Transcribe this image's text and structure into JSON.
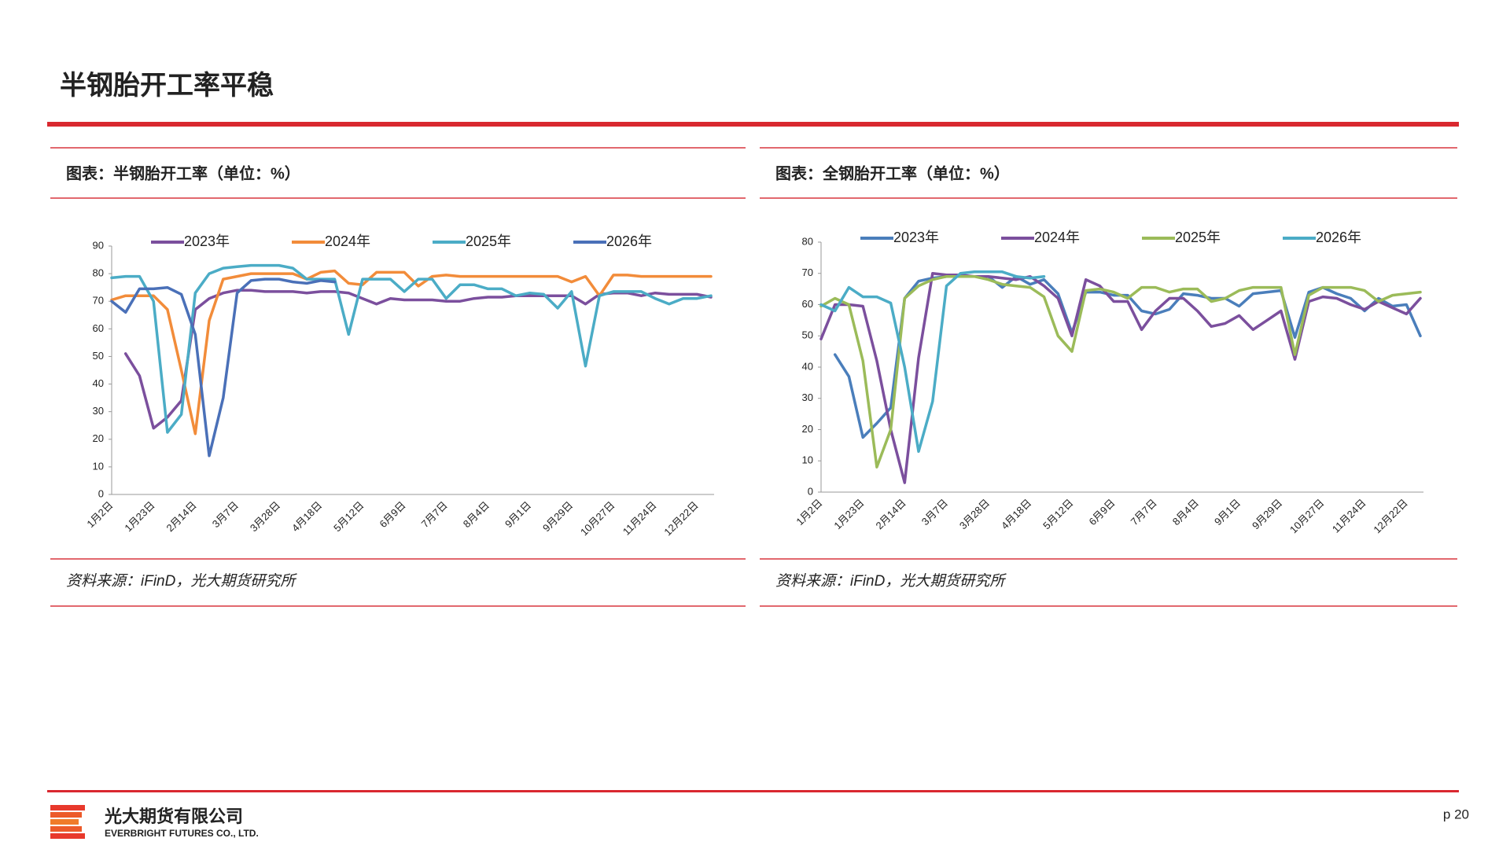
{
  "header": {
    "title": "半钢胎开工率平稳"
  },
  "chart_data": [
    {
      "type": "line",
      "title": "图表：半钢胎开工率（单位：%）",
      "source": "资料来源：iFinD，光大期货研究所",
      "categories": [
        "1月2日",
        null,
        null,
        "1月23日",
        null,
        null,
        "2月14日",
        null,
        null,
        "3月7日",
        null,
        null,
        "3月28日",
        null,
        null,
        "4月18日",
        null,
        null,
        "5月12日",
        null,
        null,
        "6月9日",
        null,
        null,
        "7月7日",
        null,
        null,
        "8月4日",
        null,
        null,
        "9月1日",
        null,
        null,
        "9月29日",
        null,
        null,
        "10月27日",
        null,
        null,
        "11月24日",
        null,
        null,
        "12月22日",
        null
      ],
      "ylim": [
        0,
        90
      ],
      "yticks": [
        0,
        10,
        20,
        30,
        40,
        50,
        60,
        70,
        80,
        90
      ],
      "series": [
        {
          "name": "2023年",
          "color": "#7b4f9d",
          "values": [
            null,
            51,
            43,
            24,
            28,
            34,
            67,
            71,
            73,
            74,
            74,
            73.5,
            73.5,
            73.5,
            73,
            73.5,
            73.5,
            73,
            71,
            69,
            71,
            70.5,
            70.5,
            70.5,
            70,
            70,
            71,
            71.5,
            71.5,
            72,
            72,
            72,
            72,
            72,
            69,
            72.5,
            73,
            73,
            72,
            73,
            72.5,
            72.5,
            72.5,
            71.5
          ]
        },
        {
          "name": "2024年",
          "color": "#f28c3a",
          "values": [
            70.5,
            72,
            72,
            72,
            67,
            45,
            22,
            63,
            78,
            79,
            80,
            80,
            80,
            80,
            78,
            80.5,
            81,
            76.5,
            76,
            80.5,
            80.5,
            80.5,
            75.5,
            79,
            79.5,
            79,
            79,
            79,
            79,
            79,
            79,
            79,
            79,
            77,
            79,
            72,
            79.5,
            79.5,
            79,
            79,
            79,
            79,
            79,
            79
          ]
        },
        {
          "name": "2025年",
          "color": "#4bacc6",
          "values": [
            78.5,
            79,
            79,
            70,
            22.5,
            29,
            73,
            80,
            82,
            82.5,
            83,
            83,
            83,
            82,
            78,
            78,
            78,
            58,
            78,
            78,
            78,
            73.5,
            78,
            78,
            71,
            76,
            76,
            74.5,
            74.5,
            72,
            73,
            72.5,
            67.5,
            73.5,
            46.5,
            72,
            73.5,
            73.5,
            73.5,
            71,
            69,
            71,
            71,
            72
          ]
        },
        {
          "name": "2026年",
          "color": "#4a70b8",
          "values": [
            70,
            66,
            74.5,
            74.5,
            75,
            72.5,
            58,
            14,
            35,
            73,
            77.5,
            78,
            78,
            77,
            76.5,
            77.5,
            77,
            null,
            null,
            null,
            null,
            null,
            null,
            null,
            null,
            null,
            null,
            null,
            null,
            null,
            null,
            null,
            null,
            null,
            null,
            null,
            null,
            null,
            null,
            null,
            null,
            null,
            null,
            null
          ]
        }
      ]
    },
    {
      "type": "line",
      "title": "图表：全钢胎开工率（单位：%）",
      "source": "资料来源：iFinD，光大期货研究所",
      "categories": [
        "1月2日",
        null,
        null,
        "1月23日",
        null,
        null,
        "2月14日",
        null,
        null,
        "3月7日",
        null,
        null,
        "3月28日",
        null,
        null,
        "4月18日",
        null,
        null,
        "5月12日",
        null,
        null,
        "6月9日",
        null,
        null,
        "7月7日",
        null,
        null,
        "8月4日",
        null,
        null,
        "9月1日",
        null,
        null,
        "9月29日",
        null,
        null,
        "10月27日",
        null,
        null,
        "11月24日",
        null,
        null,
        "12月22日",
        null
      ],
      "ylim": [
        0,
        80
      ],
      "yticks": [
        0,
        10,
        20,
        30,
        40,
        50,
        60,
        70,
        80
      ],
      "series": [
        {
          "name": "2023年",
          "color": "#4a7ebb",
          "values": [
            null,
            44,
            37,
            17.5,
            22,
            27,
            62,
            67.5,
            68.5,
            69,
            69,
            69,
            69,
            65.5,
            69,
            66.5,
            68,
            63.5,
            51,
            64,
            64,
            63,
            63,
            58,
            57,
            58.5,
            63.5,
            63,
            62,
            62,
            59.5,
            63.5,
            64,
            64.5,
            49.5,
            64,
            65.5,
            63.5,
            62,
            58,
            62,
            59.5,
            60,
            50
          ]
        },
        {
          "name": "2024年",
          "color": "#7b4f9d",
          "values": [
            49,
            60,
            60,
            59.5,
            42,
            20,
            3,
            43,
            70,
            69.5,
            69.5,
            69,
            69,
            68.5,
            68,
            69,
            66,
            62,
            50,
            68,
            66,
            61,
            61,
            52,
            58,
            62,
            62,
            58,
            53,
            54,
            56.5,
            52,
            55,
            58,
            42.5,
            61,
            62.5,
            62,
            60,
            58.5,
            61,
            59,
            57,
            62
          ]
        },
        {
          "name": "2025年",
          "color": "#9bbb59",
          "values": [
            59.5,
            62,
            60,
            42,
            8,
            20,
            62,
            66,
            68,
            69,
            69,
            69,
            68,
            66.5,
            66,
            65.5,
            62.5,
            50,
            45,
            64.5,
            65,
            64,
            62,
            65.5,
            65.5,
            64,
            65,
            65,
            61,
            62,
            64.5,
            65.5,
            65.5,
            65.5,
            44,
            63,
            65.5,
            65.5,
            65.5,
            64.5,
            61,
            63,
            63.5,
            64
          ]
        },
        {
          "name": "2026年",
          "color": "#4bacc6",
          "values": [
            60,
            58,
            65.5,
            62.5,
            62.5,
            60.5,
            40,
            13,
            29,
            66,
            70,
            70.5,
            70.5,
            70.5,
            69,
            68.5,
            69,
            null,
            null,
            null,
            null,
            null,
            null,
            null,
            null,
            null,
            null,
            null,
            null,
            null,
            null,
            null,
            null,
            null,
            null,
            null,
            null,
            null,
            null,
            null,
            null,
            null,
            null,
            null
          ]
        }
      ]
    }
  ],
  "footer": {
    "company": "光大期货有限公司",
    "company_en": "EVERBRIGHT FUTURES CO., LTD.",
    "page": "p 20"
  }
}
